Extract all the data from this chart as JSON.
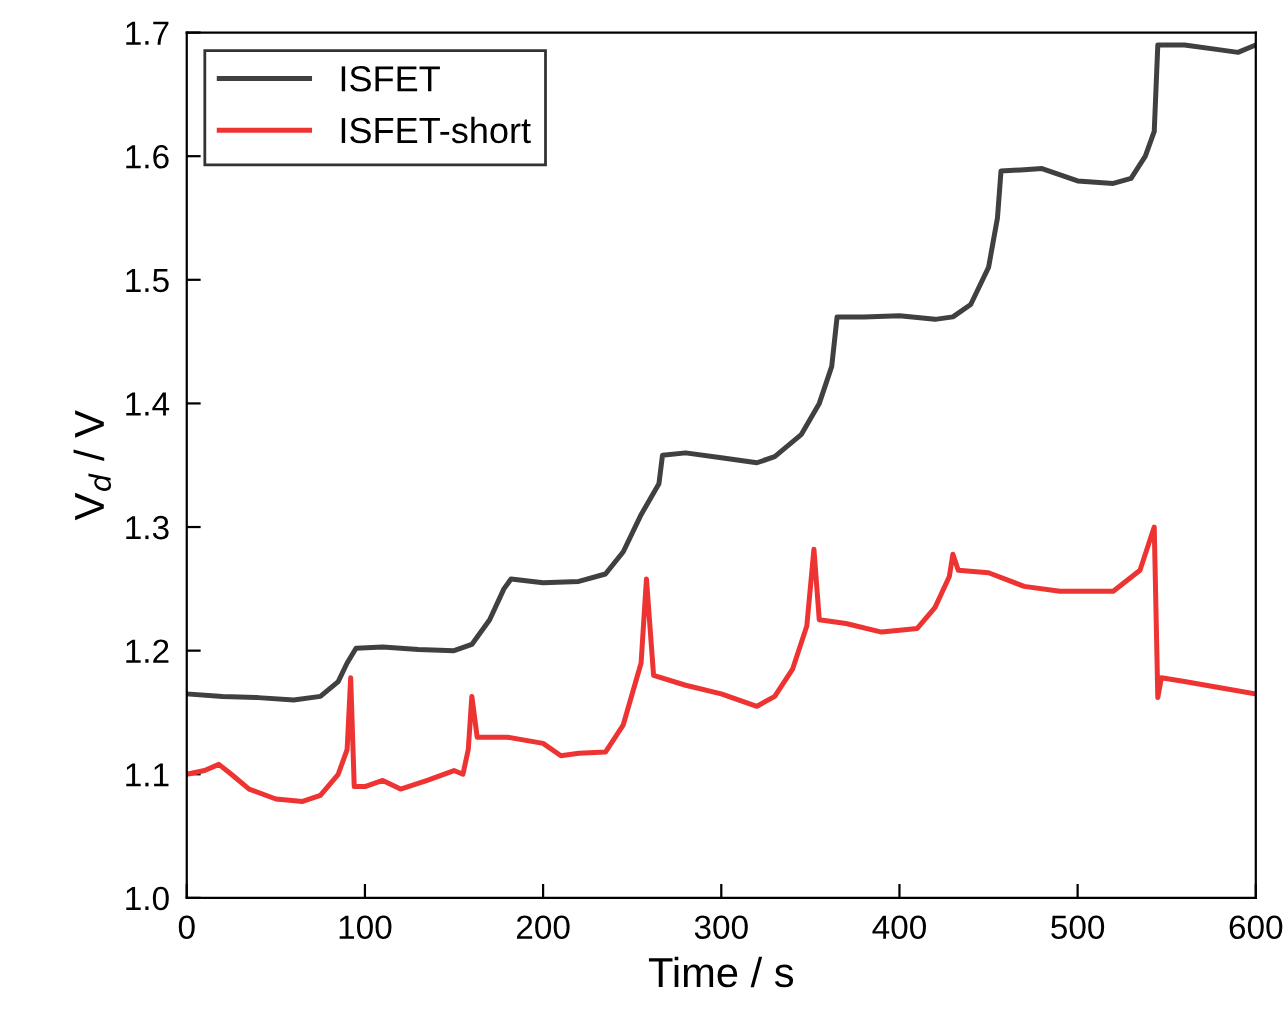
{
  "chart_data": {
    "type": "line",
    "xlabel": "Time / s",
    "ylabel": "V$_{d}$ / V",
    "xlim": [
      0,
      600
    ],
    "ylim": [
      1.0,
      1.7
    ],
    "xticks": [
      0,
      100,
      200,
      300,
      400,
      500,
      600
    ],
    "yticks": [
      {
        "value": 1.0,
        "label": "1.0"
      },
      1.1,
      1.2,
      1.3,
      1.4,
      1.5,
      1.6,
      1.7
    ],
    "grid": false,
    "legend": "top left",
    "line_style": "solid",
    "marker": "none",
    "series": [
      {
        "name": "ISFET",
        "color": "#404040",
        "x": [
          0,
          20,
          40,
          60,
          75,
          85,
          90,
          95,
          110,
          130,
          150,
          160,
          170,
          178,
          182,
          200,
          220,
          235,
          245,
          255,
          265,
          267,
          280,
          300,
          320,
          330,
          345,
          355,
          362,
          365,
          380,
          400,
          420,
          430,
          440,
          450,
          455,
          457,
          470,
          480,
          500,
          520,
          530,
          538,
          543,
          545,
          560,
          580,
          590,
          600
        ],
        "values": [
          1.165,
          1.163,
          1.162,
          1.16,
          1.163,
          1.175,
          1.19,
          1.202,
          1.203,
          1.201,
          1.2,
          1.205,
          1.225,
          1.25,
          1.258,
          1.255,
          1.256,
          1.262,
          1.28,
          1.31,
          1.335,
          1.358,
          1.36,
          1.356,
          1.352,
          1.357,
          1.375,
          1.4,
          1.43,
          1.47,
          1.47,
          1.471,
          1.468,
          1.47,
          1.48,
          1.51,
          1.55,
          1.588,
          1.589,
          1.59,
          1.58,
          1.578,
          1.582,
          1.6,
          1.62,
          1.69,
          1.69,
          1.686,
          1.684,
          1.69
        ]
      },
      {
        "name": "ISFET-short",
        "color": "#ee3333",
        "x": [
          0,
          10,
          18,
          25,
          35,
          50,
          65,
          75,
          85,
          90,
          92,
          94,
          100,
          110,
          120,
          135,
          150,
          155,
          158,
          160,
          163,
          180,
          200,
          210,
          220,
          235,
          245,
          255,
          258,
          262,
          280,
          300,
          320,
          330,
          340,
          348,
          352,
          355,
          370,
          390,
          410,
          420,
          428,
          430,
          433,
          450,
          470,
          490,
          520,
          535,
          543,
          545,
          547,
          560,
          580,
          600
        ],
        "values": [
          1.1,
          1.103,
          1.108,
          1.1,
          1.088,
          1.08,
          1.078,
          1.083,
          1.1,
          1.12,
          1.178,
          1.09,
          1.09,
          1.095,
          1.088,
          1.095,
          1.103,
          1.1,
          1.12,
          1.163,
          1.13,
          1.13,
          1.125,
          1.115,
          1.117,
          1.118,
          1.14,
          1.19,
          1.258,
          1.18,
          1.172,
          1.165,
          1.155,
          1.163,
          1.185,
          1.22,
          1.282,
          1.225,
          1.222,
          1.215,
          1.218,
          1.235,
          1.26,
          1.278,
          1.265,
          1.263,
          1.252,
          1.248,
          1.248,
          1.265,
          1.3,
          1.162,
          1.178,
          1.175,
          1.17,
          1.165
        ]
      }
    ]
  }
}
